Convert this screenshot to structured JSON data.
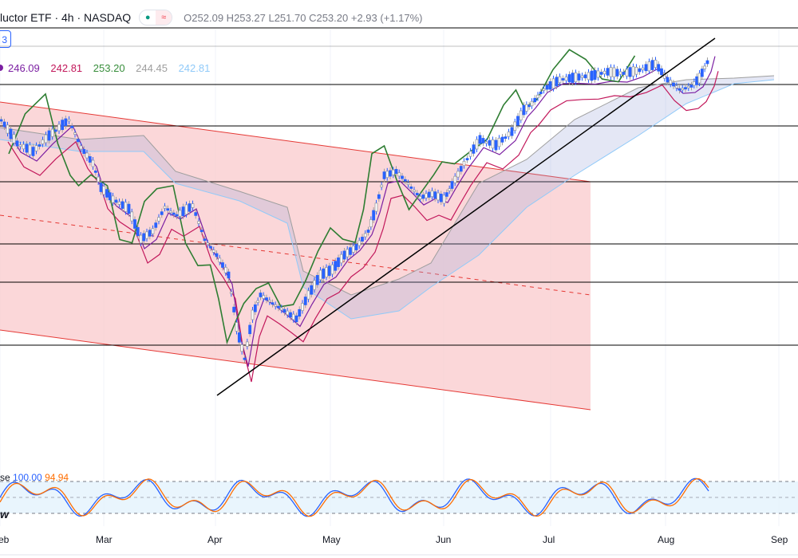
{
  "header": {
    "title": "luctor ETF · 4h · NASDAQ",
    "badge": "3",
    "ohlc": {
      "o_label": "O",
      "o": "252.09",
      "h_label": "H",
      "h": "253.27",
      "l_label": "L",
      "l": "251.70",
      "c_label": "C",
      "c": "253.20",
      "change": "+2.93 (+1.17%)"
    }
  },
  "indicator_values": [
    {
      "text": "246.09",
      "color": "#7b1fa2"
    },
    {
      "text": "242.81",
      "color": "#c2185b"
    },
    {
      "text": "253.20",
      "color": "#388e3c"
    },
    {
      "text": "244.45",
      "color": "#9e9e9e"
    },
    {
      "text": "242.81",
      "color": "#90caf9"
    }
  ],
  "stoch": {
    "label": "se",
    "k": "100.00",
    "d": "94.94",
    "k_color": "#2962ff",
    "d_color": "#ff6d00",
    "cutoff_label": "w"
  },
  "chart_data": {
    "type": "line",
    "x_ticks": [
      "eb",
      "Mar",
      "Apr",
      "May",
      "Jun",
      "Jul",
      "Aug",
      "Sep"
    ],
    "price_series": {
      "name": "",
      "approx_values": [
        238,
        236,
        233,
        225,
        222,
        219,
        214,
        218,
        221,
        216,
        205,
        198,
        201,
        214,
        218,
        224,
        231,
        229,
        236,
        241,
        246,
        249,
        247,
        245,
        242,
        247,
        250,
        253.2
      ]
    },
    "horizontal_levels_count": 8,
    "stoch_bands": {
      "upper": 80,
      "lower": 20
    }
  }
}
